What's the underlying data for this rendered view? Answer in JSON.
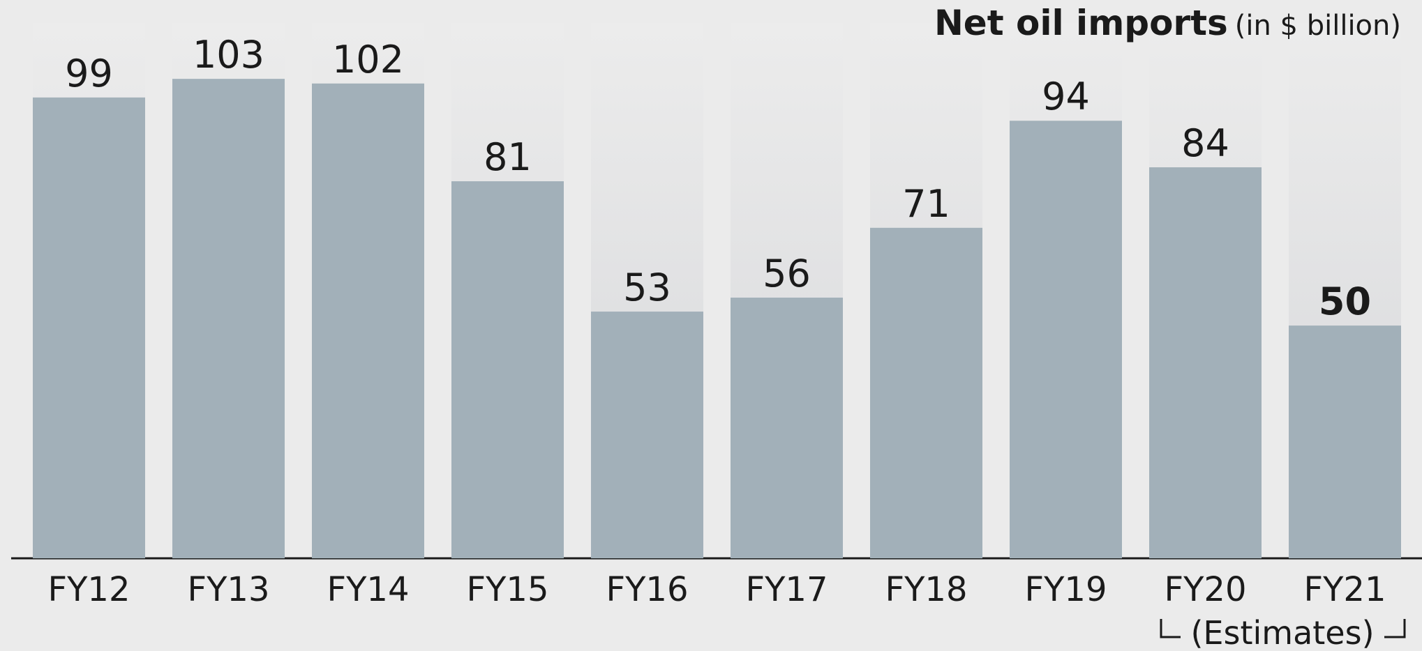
{
  "chart_data": {
    "type": "bar",
    "title": "Net oil imports",
    "subtitle": "(in $ billion)",
    "categories": [
      "FY12",
      "FY13",
      "FY14",
      "FY15",
      "FY16",
      "FY17",
      "FY18",
      "FY19",
      "FY20",
      "FY21"
    ],
    "values": [
      99,
      103,
      102,
      81,
      53,
      56,
      71,
      94,
      84,
      50
    ],
    "color": "#a2b0b9",
    "ylim": [
      0,
      115
    ],
    "annotation": "(Estimates)"
  }
}
